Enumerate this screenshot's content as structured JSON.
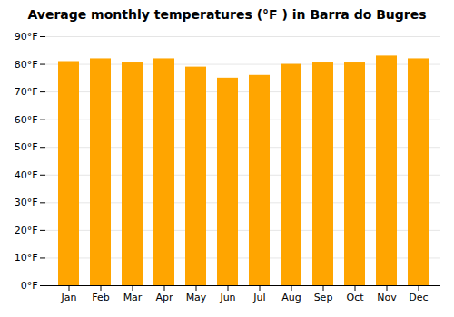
{
  "chart_data": {
    "type": "bar",
    "title": "Average monthly temperatures (°F ) in Barra do Bugres",
    "categories": [
      "Jan",
      "Feb",
      "Mar",
      "Apr",
      "May",
      "Jun",
      "Jul",
      "Aug",
      "Sep",
      "Oct",
      "Nov",
      "Dec"
    ],
    "values": [
      81,
      82,
      80.5,
      82,
      79,
      75,
      76,
      80,
      80.5,
      80.5,
      83,
      82
    ],
    "color": "#FFA500",
    "ylim": [
      0,
      90
    ],
    "yticks": [
      {
        "value": 0,
        "label": "0°F"
      },
      {
        "value": 10,
        "label": "10°F"
      },
      {
        "value": 20,
        "label": "20°F"
      },
      {
        "value": 30,
        "label": "30°F"
      },
      {
        "value": 40,
        "label": "40°F"
      },
      {
        "value": 50,
        "label": "50°F"
      },
      {
        "value": 60,
        "label": "60°F"
      },
      {
        "value": 70,
        "label": "70°F"
      },
      {
        "value": 80,
        "label": "80°F"
      },
      {
        "value": 90,
        "label": "90°F"
      }
    ],
    "grid": true
  }
}
